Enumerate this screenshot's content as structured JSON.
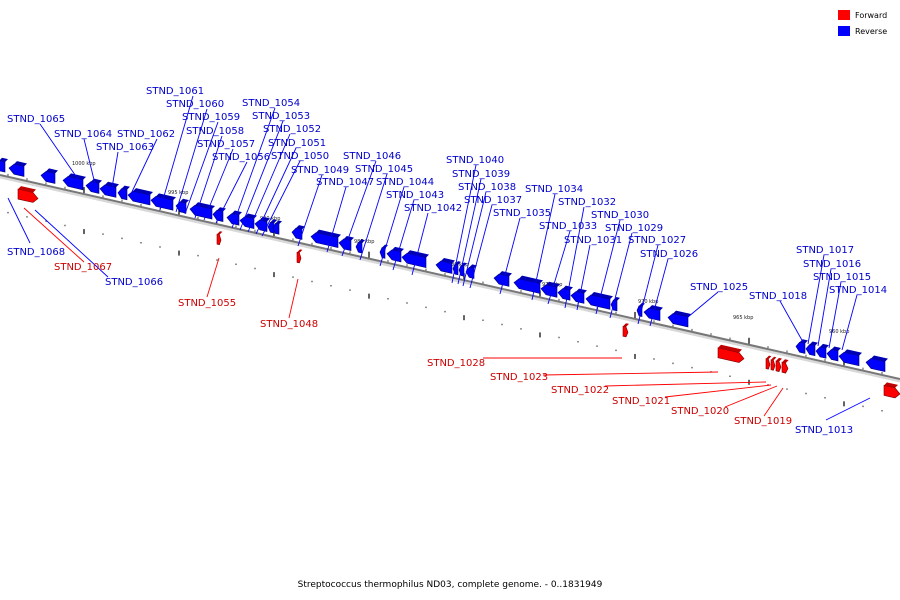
{
  "legend": {
    "forward_label": "Forward",
    "reverse_label": "Reverse",
    "forward_color": "#ff0000",
    "reverse_color": "#0000ff"
  },
  "axis_color": "#777777",
  "caption": "Streptococcus thermophilus ND03, complete genome. - 0..1831949",
  "tick_labels": [
    "1000 kbp",
    "995 kbp",
    "990 kbp",
    "985 kbp",
    "980 kbp",
    "975 kbp",
    "970 kbp",
    "965 kbp",
    "960 kbp"
  ],
  "genes": [
    {
      "name": "STND_1065",
      "strand": "reverse"
    },
    {
      "name": "STND_1064",
      "strand": "reverse"
    },
    {
      "name": "STND_1063",
      "strand": "reverse"
    },
    {
      "name": "STND_1062",
      "strand": "reverse"
    },
    {
      "name": "STND_1061",
      "strand": "reverse"
    },
    {
      "name": "STND_1060",
      "strand": "reverse"
    },
    {
      "name": "STND_1059",
      "strand": "reverse"
    },
    {
      "name": "STND_1058",
      "strand": "reverse"
    },
    {
      "name": "STND_1057",
      "strand": "reverse"
    },
    {
      "name": "STND_1056",
      "strand": "reverse"
    },
    {
      "name": "STND_1054",
      "strand": "reverse"
    },
    {
      "name": "STND_1053",
      "strand": "reverse"
    },
    {
      "name": "STND_1052",
      "strand": "reverse"
    },
    {
      "name": "STND_1051",
      "strand": "reverse"
    },
    {
      "name": "STND_1050",
      "strand": "reverse"
    },
    {
      "name": "STND_1049",
      "strand": "reverse"
    },
    {
      "name": "STND_1047",
      "strand": "reverse"
    },
    {
      "name": "STND_1046",
      "strand": "reverse"
    },
    {
      "name": "STND_1045",
      "strand": "reverse"
    },
    {
      "name": "STND_1044",
      "strand": "reverse"
    },
    {
      "name": "STND_1043",
      "strand": "reverse"
    },
    {
      "name": "STND_1042",
      "strand": "reverse"
    },
    {
      "name": "STND_1040",
      "strand": "reverse"
    },
    {
      "name": "STND_1039",
      "strand": "reverse"
    },
    {
      "name": "STND_1038",
      "strand": "reverse"
    },
    {
      "name": "STND_1037",
      "strand": "reverse"
    },
    {
      "name": "STND_1035",
      "strand": "reverse"
    },
    {
      "name": "STND_1034",
      "strand": "reverse"
    },
    {
      "name": "STND_1033",
      "strand": "reverse"
    },
    {
      "name": "STND_1032",
      "strand": "reverse"
    },
    {
      "name": "STND_1031",
      "strand": "reverse"
    },
    {
      "name": "STND_1030",
      "strand": "reverse"
    },
    {
      "name": "STND_1029",
      "strand": "reverse"
    },
    {
      "name": "STND_1027",
      "strand": "reverse"
    },
    {
      "name": "STND_1026",
      "strand": "reverse"
    },
    {
      "name": "STND_1025",
      "strand": "reverse"
    },
    {
      "name": "STND_1018",
      "strand": "reverse"
    },
    {
      "name": "STND_1017",
      "strand": "reverse"
    },
    {
      "name": "STND_1016",
      "strand": "reverse"
    },
    {
      "name": "STND_1015",
      "strand": "reverse"
    },
    {
      "name": "STND_1014",
      "strand": "reverse"
    },
    {
      "name": "STND_1068",
      "strand": "reverse"
    },
    {
      "name": "STND_1066",
      "strand": "reverse"
    },
    {
      "name": "STND_1013",
      "strand": "reverse"
    },
    {
      "name": "STND_1067",
      "strand": "forward"
    },
    {
      "name": "STND_1055",
      "strand": "forward"
    },
    {
      "name": "STND_1048",
      "strand": "forward"
    },
    {
      "name": "STND_1028",
      "strand": "forward"
    },
    {
      "name": "STND_1023",
      "strand": "forward"
    },
    {
      "name": "STND_1022",
      "strand": "forward"
    },
    {
      "name": "STND_1021",
      "strand": "forward"
    },
    {
      "name": "STND_1020",
      "strand": "forward"
    },
    {
      "name": "STND_1019",
      "strand": "forward"
    }
  ]
}
